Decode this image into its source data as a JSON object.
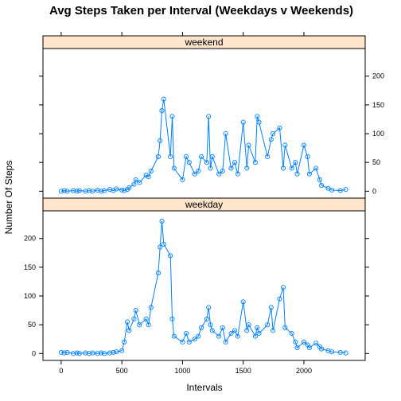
{
  "chart_data": {
    "type": "line",
    "title": "Avg Steps Taken per Interval (Weekdays v Weekends)",
    "xlabel": "Intervals",
    "ylabel": "Number Of Steps",
    "xlim": [
      -150,
      2505
    ],
    "x_ticks": [
      0,
      500,
      1000,
      1500,
      2000
    ],
    "y_ticks": [
      0,
      50,
      100,
      150,
      200
    ],
    "series_color": "#0080ff",
    "strip_color": "#ffe5cc",
    "panels": [
      {
        "name": "weekend",
        "ylim": [
          -12,
          248
        ],
        "y_axis_side": "right",
        "x": [
          0,
          25,
          50,
          100,
          130,
          150,
          200,
          230,
          260,
          300,
          330,
          355,
          400,
          430,
          455,
          500,
          520,
          545,
          560,
          600,
          615,
          645,
          700,
          720,
          740,
          800,
          815,
          830,
          845,
          900,
          915,
          930,
          1000,
          1030,
          1055,
          1100,
          1130,
          1155,
          1200,
          1215,
          1230,
          1245,
          1300,
          1330,
          1355,
          1400,
          1430,
          1455,
          1500,
          1530,
          1545,
          1600,
          1615,
          1630,
          1700,
          1730,
          1745,
          1800,
          1830,
          1845,
          1900,
          1930,
          1945,
          2000,
          2030,
          2045,
          2100,
          2130,
          2145,
          2200,
          2230,
          2300,
          2345
        ],
        "values": [
          0,
          1,
          0,
          1,
          0,
          1,
          0,
          1,
          0,
          2,
          0,
          1,
          3,
          1,
          4,
          2,
          1,
          3,
          6,
          12,
          20,
          15,
          28,
          25,
          35,
          60,
          88,
          140,
          160,
          60,
          130,
          40,
          20,
          60,
          50,
          30,
          35,
          60,
          50,
          130,
          40,
          60,
          30,
          35,
          100,
          40,
          50,
          30,
          120,
          40,
          80,
          50,
          130,
          120,
          60,
          90,
          100,
          110,
          40,
          80,
          40,
          50,
          30,
          80,
          60,
          30,
          40,
          20,
          10,
          5,
          2,
          1,
          3
        ]
      },
      {
        "name": "weekday",
        "ylim": [
          -12,
          248
        ],
        "y_axis_side": "left",
        "x": [
          0,
          25,
          50,
          100,
          130,
          150,
          200,
          230,
          260,
          300,
          330,
          355,
          400,
          430,
          455,
          500,
          520,
          545,
          560,
          600,
          615,
          645,
          700,
          720,
          740,
          800,
          815,
          830,
          845,
          900,
          915,
          930,
          1000,
          1030,
          1055,
          1100,
          1130,
          1155,
          1200,
          1215,
          1230,
          1245,
          1300,
          1330,
          1355,
          1400,
          1430,
          1455,
          1500,
          1530,
          1545,
          1600,
          1615,
          1630,
          1700,
          1730,
          1745,
          1800,
          1830,
          1845,
          1900,
          1930,
          1945,
          2000,
          2030,
          2045,
          2100,
          2130,
          2145,
          2200,
          2230,
          2300,
          2345
        ],
        "values": [
          2,
          1,
          2,
          0,
          1,
          0,
          1,
          0,
          1,
          0,
          1,
          0,
          1,
          2,
          3,
          5,
          20,
          55,
          40,
          60,
          75,
          50,
          60,
          50,
          80,
          140,
          185,
          230,
          190,
          170,
          60,
          30,
          20,
          35,
          20,
          25,
          30,
          45,
          60,
          80,
          50,
          40,
          30,
          45,
          20,
          35,
          40,
          30,
          90,
          40,
          50,
          30,
          45,
          35,
          50,
          80,
          40,
          95,
          115,
          45,
          35,
          20,
          10,
          20,
          15,
          10,
          18,
          12,
          8,
          5,
          3,
          2,
          1
        ]
      }
    ]
  }
}
